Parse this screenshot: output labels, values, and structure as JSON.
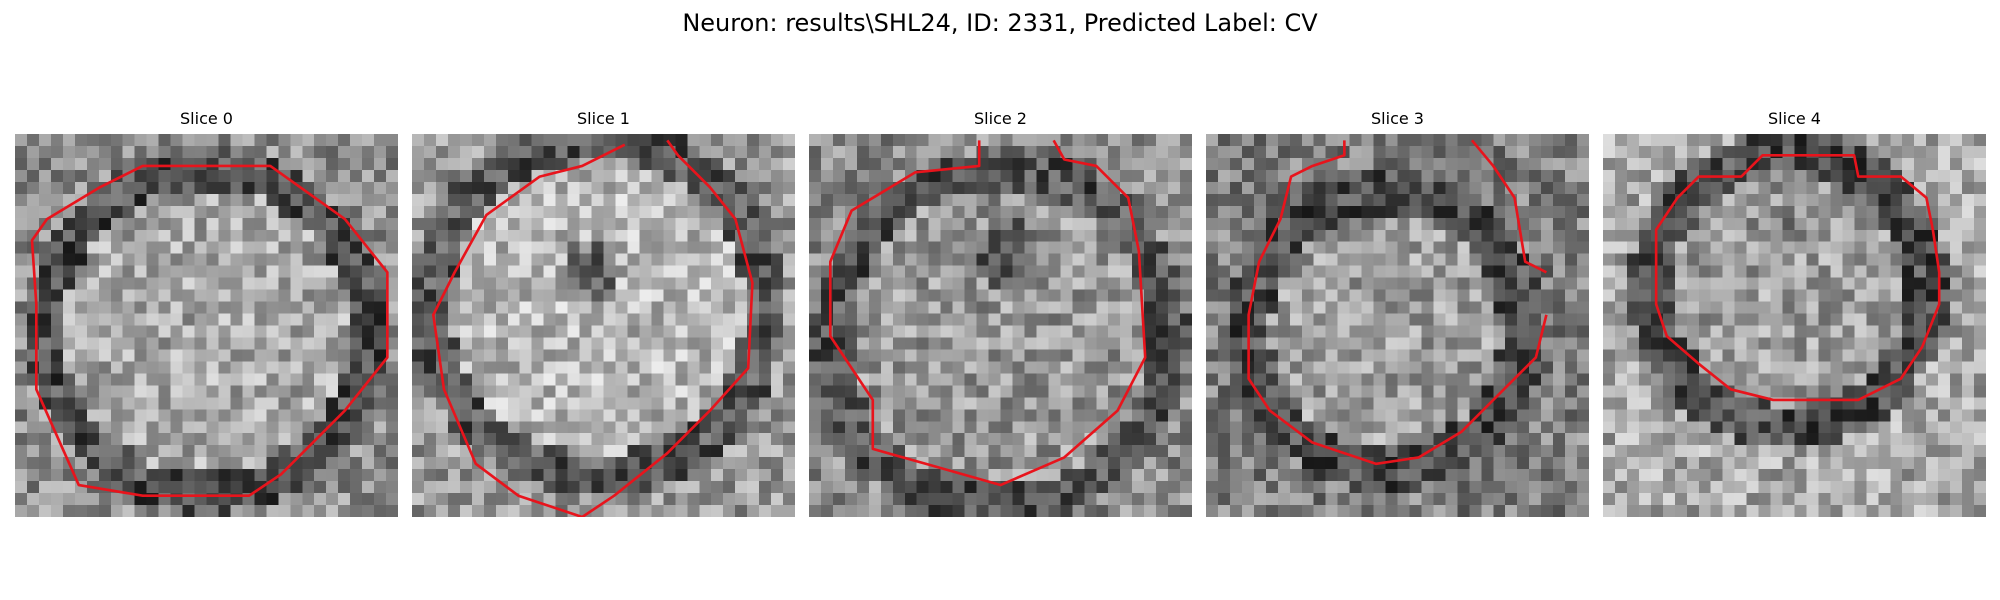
{
  "figure": {
    "title": "Neuron: results\\SHL24, ID: 2331, Predicted Label: CV"
  },
  "panels": [
    {
      "title": "Slice 0"
    },
    {
      "title": "Slice 1"
    },
    {
      "title": "Slice 2"
    },
    {
      "title": "Slice 3"
    },
    {
      "title": "Slice 4"
    }
  ],
  "colors": {
    "contour": "#e8141c",
    "background": "#ffffff"
  }
}
